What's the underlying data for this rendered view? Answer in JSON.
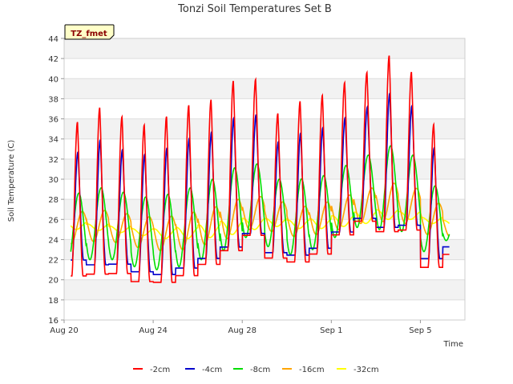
{
  "chart_data": {
    "type": "line",
    "title": "Tonzi Soil Temperatures Set B",
    "xlabel": "Time",
    "ylabel": "Soil Temperature (C)",
    "tag": "TZ_fmet",
    "ylim": [
      16,
      44
    ],
    "yticks": [
      16,
      18,
      20,
      22,
      24,
      26,
      28,
      30,
      32,
      34,
      36,
      38,
      40,
      42,
      44
    ],
    "xlim": [
      0,
      18
    ],
    "xticks": [
      {
        "day": 0,
        "label": "Aug 20"
      },
      {
        "day": 4,
        "label": "Aug 24"
      },
      {
        "day": 8,
        "label": "Aug 28"
      },
      {
        "day": 12,
        "label": "Sep 1"
      },
      {
        "day": 16,
        "label": "Sep 5"
      }
    ],
    "grid": true,
    "legend_position": "bottom",
    "x_start": 0.3,
    "x_end": 17.3,
    "days": [
      0,
      1,
      2,
      3,
      4,
      5,
      6,
      7,
      8,
      9,
      10,
      11,
      12,
      13,
      14,
      15,
      16,
      17
    ],
    "series": [
      {
        "name": "-2cm",
        "color": "#ff0000",
        "max": [
          35.5,
          37.2,
          36.3,
          35.3,
          36.1,
          37.3,
          37.7,
          39.7,
          40.3,
          36.4,
          37.7,
          38.2,
          39.5,
          40.4,
          42.4,
          41.2,
          35.8,
          32.2
        ],
        "min": [
          18.3,
          18.3,
          18.5,
          17.7,
          17.5,
          18.1,
          19.3,
          20.6,
          22.3,
          20.2,
          19.6,
          20.4,
          22.4,
          23.8,
          22.4,
          22.8,
          19.3,
          21.2
        ]
      },
      {
        "name": "-4cm",
        "color": "#0000cc",
        "max": [
          32.5,
          34.0,
          33.0,
          32.4,
          33.0,
          34.0,
          34.5,
          36.0,
          36.8,
          33.6,
          34.5,
          35.0,
          36.0,
          37.0,
          38.6,
          37.8,
          33.5,
          30.4
        ],
        "min": [
          20.5,
          19.8,
          20.0,
          19.2,
          18.8,
          19.4,
          20.4,
          21.5,
          23.0,
          21.2,
          20.8,
          21.5,
          23.2,
          24.6,
          23.4,
          23.8,
          20.6,
          22.3
        ]
      },
      {
        "name": "-8cm",
        "color": "#00dd00",
        "max": [
          28.5,
          29.2,
          28.8,
          28.2,
          28.4,
          29.0,
          29.8,
          31.0,
          31.8,
          30.0,
          30.0,
          30.2,
          31.2,
          32.2,
          33.4,
          32.9,
          29.7,
          27.4
        ],
        "min": [
          21.5,
          22.0,
          22.0,
          21.3,
          21.0,
          21.3,
          22.0,
          22.9,
          24.2,
          23.3,
          22.5,
          23.0,
          24.2,
          25.2,
          25.0,
          24.8,
          22.8,
          23.9
        ]
      },
      {
        "name": "-16cm",
        "color": "#ffa500",
        "max": [
          26.7,
          27.0,
          26.7,
          26.3,
          26.2,
          26.6,
          27.0,
          27.8,
          28.4,
          28.0,
          27.2,
          27.5,
          28.2,
          28.9,
          29.6,
          29.6,
          28.0,
          26.8
        ],
        "min": [
          23.6,
          23.8,
          23.7,
          23.2,
          22.9,
          23.0,
          23.5,
          24.1,
          25.0,
          24.8,
          24.3,
          24.5,
          25.0,
          25.6,
          25.8,
          25.6,
          24.5,
          24.3
        ]
      },
      {
        "name": "-32cm",
        "color": "#ffff00",
        "max": [
          25.9,
          25.6,
          25.5,
          25.2,
          25.0,
          25.1,
          25.3,
          25.6,
          26.0,
          26.2,
          26.0,
          25.9,
          26.2,
          26.5,
          26.9,
          27.0,
          26.6,
          25.9
        ],
        "min": [
          25.0,
          24.9,
          24.7,
          24.4,
          24.1,
          24.1,
          24.2,
          24.5,
          25.0,
          25.3,
          25.1,
          25.1,
          25.3,
          25.6,
          26.0,
          26.0,
          25.6,
          25.3
        ]
      }
    ]
  }
}
